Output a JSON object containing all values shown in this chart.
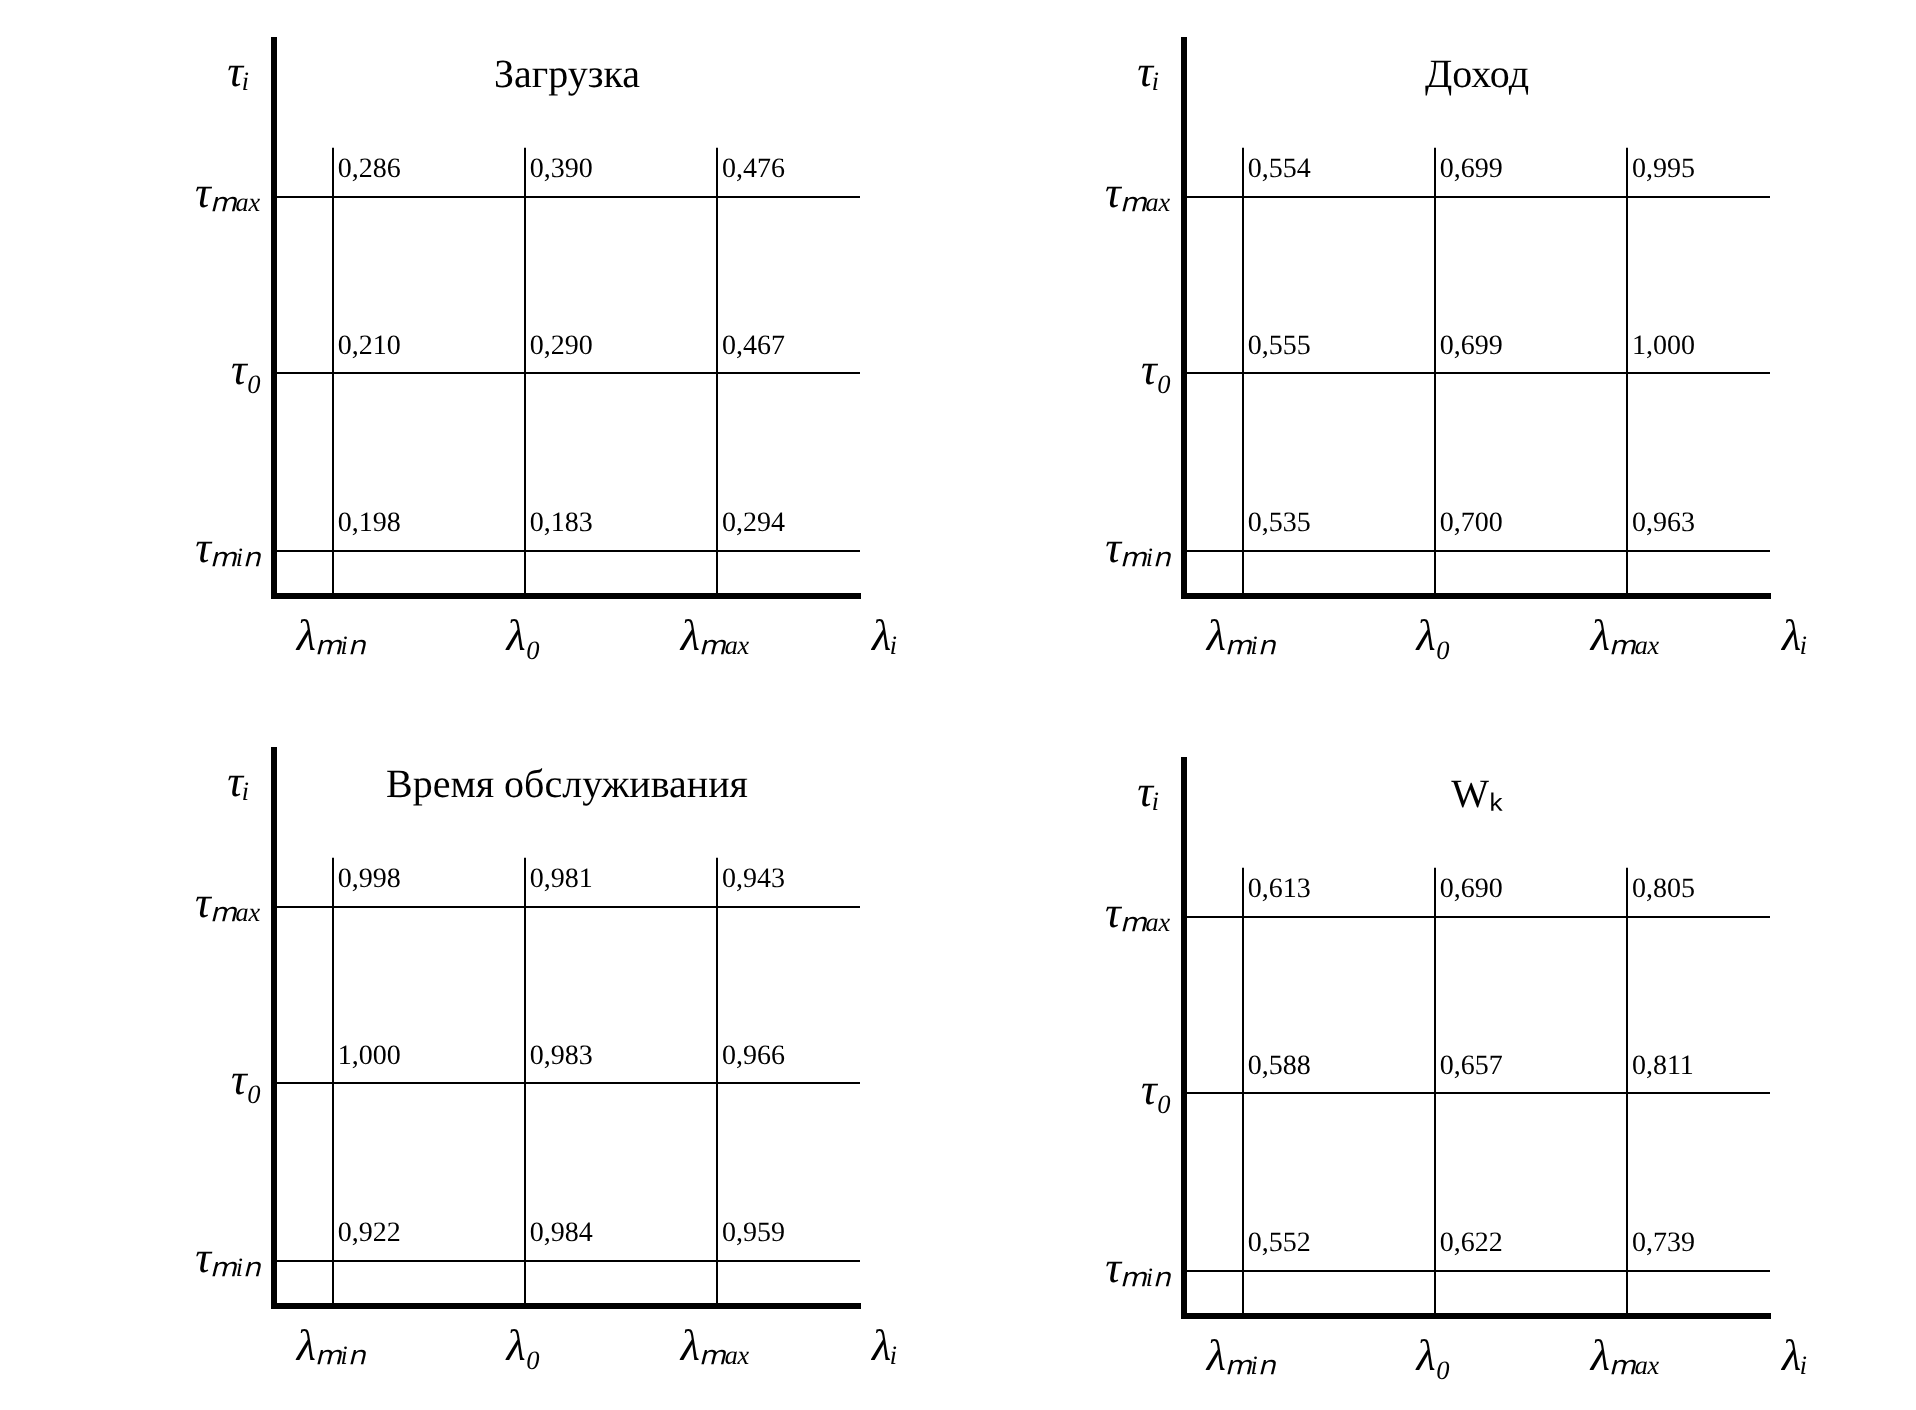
{
  "chart_data": [
    {
      "type": "heatmap",
      "title": "Загрузка",
      "xlabel": "λᵢ",
      "ylabel": "τᵢ",
      "categories": [
        "λₘᵢₙ",
        "λ₀",
        "λₘₐₓ"
      ],
      "y_categories": [
        "τₘₐₓ",
        "τ₀",
        "τₘᵢₙ"
      ],
      "grid": true,
      "cells": [
        [
          0.286,
          0.39,
          0.476
        ],
        [
          0.21,
          0.29,
          0.467
        ],
        [
          0.198,
          0.183,
          0.294
        ]
      ],
      "cell_labels": [
        [
          "0,286",
          "0,390",
          "0,476"
        ],
        [
          "0,210",
          "0,290",
          "0,467"
        ],
        [
          "0,198",
          "0,183",
          "0,294"
        ]
      ]
    },
    {
      "type": "heatmap",
      "title": "Доход",
      "xlabel": "λᵢ",
      "ylabel": "τᵢ",
      "categories": [
        "λₘᵢₙ",
        "λ₀",
        "λₘₐₓ"
      ],
      "y_categories": [
        "τₘₐₓ",
        "τ₀",
        "τₘᵢₙ"
      ],
      "grid": true,
      "cells": [
        [
          0.554,
          0.699,
          0.995
        ],
        [
          0.555,
          0.699,
          1.0
        ],
        [
          0.535,
          0.7,
          0.963
        ]
      ],
      "cell_labels": [
        [
          "0,554",
          "0,699",
          "0,995"
        ],
        [
          "0,555",
          "0,699",
          "1,000"
        ],
        [
          "0,535",
          "0,700",
          "0,963"
        ]
      ]
    },
    {
      "type": "heatmap",
      "title": "Время обслуживания",
      "xlabel": "λᵢ",
      "ylabel": "τᵢ",
      "categories": [
        "λₘᵢₙ",
        "λ₀",
        "λₘₐₓ"
      ],
      "y_categories": [
        "τₘₐₓ",
        "τ₀",
        "τₘᵢₙ"
      ],
      "grid": true,
      "cells": [
        [
          0.998,
          0.981,
          0.943
        ],
        [
          1.0,
          0.983,
          0.966
        ],
        [
          0.922,
          0.984,
          0.959
        ]
      ],
      "cell_labels": [
        [
          "0,998",
          "0,981",
          "0,943"
        ],
        [
          "1,000",
          "0,983",
          "0,966"
        ],
        [
          "0,922",
          "0,984",
          "0,959"
        ]
      ]
    },
    {
      "type": "heatmap",
      "title": "Wₖ",
      "xlabel": "λᵢ",
      "ylabel": "τᵢ",
      "categories": [
        "λₘᵢₙ",
        "λ₀",
        "λₘₐₓ"
      ],
      "y_categories": [
        "τₘₐₓ",
        "τ₀",
        "τₘᵢₙ"
      ],
      "grid": true,
      "cells": [
        [
          0.613,
          0.69,
          0.805
        ],
        [
          0.588,
          0.657,
          0.811
        ],
        [
          0.552,
          0.622,
          0.739
        ]
      ],
      "cell_labels": [
        [
          "0,613",
          "0,690",
          "0,805"
        ],
        [
          "0,588",
          "0,657",
          "0,811"
        ],
        [
          "0,552",
          "0,622",
          "0,739"
        ]
      ]
    }
  ]
}
